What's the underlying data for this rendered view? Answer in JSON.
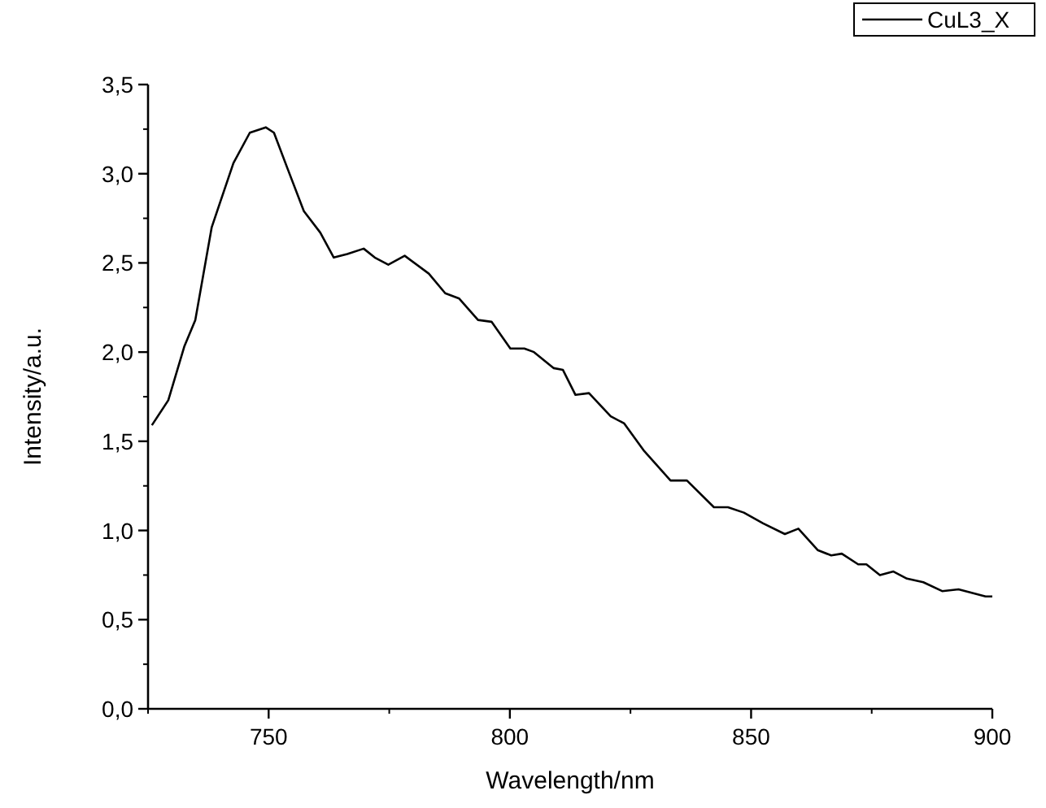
{
  "chart_data": {
    "type": "line",
    "xlabel": "Wavelength/nm",
    "ylabel": "Intensity/a.u.",
    "xlim": [
      725,
      900
    ],
    "xticks": [
      750,
      800,
      850,
      900
    ],
    "ylim": [
      0,
      3.5
    ],
    "yticks": [
      {
        "value": 0,
        "label": "0,0"
      },
      {
        "value": 0.5,
        "label": "0,5"
      },
      {
        "value": 1,
        "label": "1,0"
      },
      {
        "value": 1.5,
        "label": "1,5"
      },
      {
        "value": 2,
        "label": "2,0"
      },
      {
        "value": 2.5,
        "label": "2,5"
      },
      {
        "value": 3,
        "label": "3,0"
      },
      {
        "value": 3.5,
        "label": "3,5"
      }
    ],
    "grid": false,
    "legend": "top right",
    "marker": "none",
    "line_style": "solid",
    "series": [
      {
        "name": "CuL3_X",
        "color": "#000000",
        "x": [
          725.8,
          729.2,
          732.5,
          734.8,
          738.2,
          742.7,
          746.1,
          749.4,
          751.1,
          753.9,
          757.3,
          760.7,
          763.5,
          766.3,
          769.7,
          772,
          774.8,
          778.2,
          783.2,
          786.6,
          789.5,
          793.4,
          796.2,
          800.1,
          803,
          805,
          809.1,
          811,
          813.6,
          816.4,
          820.9,
          823.7,
          827.7,
          833.3,
          836.7,
          842.3,
          845.2,
          848.5,
          852.5,
          857,
          859.8,
          863.8,
          866.6,
          868.8,
          872.2,
          873.9,
          876.7,
          879.5,
          882.3,
          885.7,
          889.6,
          893,
          898.6,
          900
        ],
        "values": [
          1.59,
          1.73,
          2.03,
          2.18,
          2.7,
          3.06,
          3.23,
          3.26,
          3.23,
          3.03,
          2.79,
          2.67,
          2.53,
          2.55,
          2.58,
          2.53,
          2.49,
          2.54,
          2.44,
          2.33,
          2.3,
          2.18,
          2.17,
          2.02,
          2.02,
          2.0,
          1.91,
          1.9,
          1.76,
          1.77,
          1.64,
          1.6,
          1.45,
          1.28,
          1.28,
          1.13,
          1.13,
          1.1,
          1.04,
          0.98,
          1.01,
          0.89,
          0.86,
          0.87,
          0.81,
          0.81,
          0.75,
          0.77,
          0.73,
          0.71,
          0.66,
          0.67,
          0.63,
          0.63
        ]
      }
    ]
  }
}
